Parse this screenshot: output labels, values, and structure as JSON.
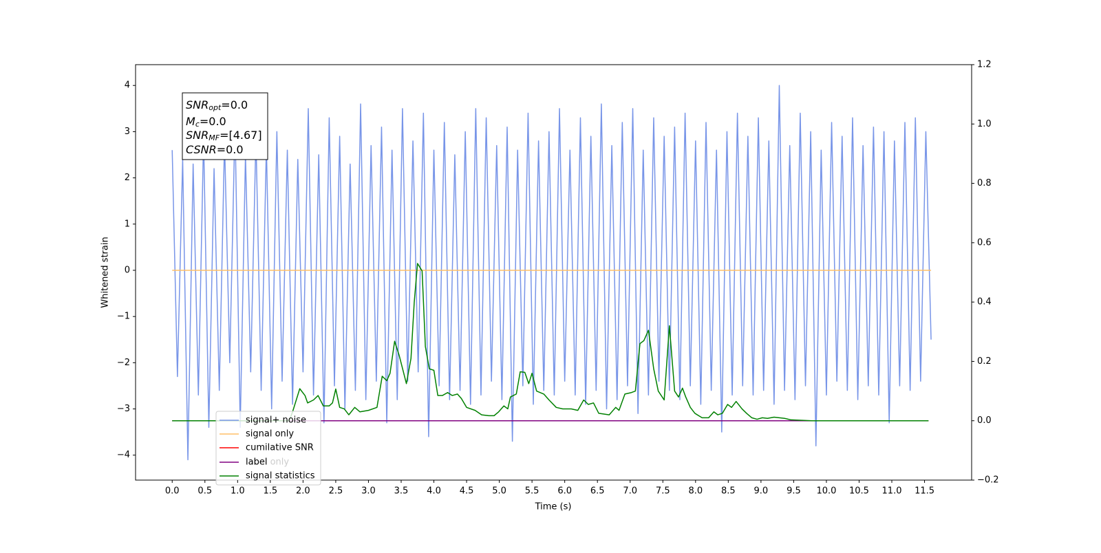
{
  "chart_data": {
    "type": "line",
    "xlabel": "Time (s)",
    "ylabel": "Whitened strain",
    "xlim": [
      -0.56,
      12.22
    ],
    "ylim": [
      -4.54,
      4.45
    ],
    "y2lim": [
      -0.2,
      1.2
    ],
    "xticks": [
      {
        "value": 0,
        "label": "0.0"
      },
      0.5,
      {
        "value": 1,
        "label": "1.0"
      },
      1.5,
      {
        "value": 2,
        "label": "2.0"
      },
      2.5,
      {
        "value": 3,
        "label": "3.0"
      },
      3.5,
      {
        "value": 4,
        "label": "4.0"
      },
      4.5,
      {
        "value": 5,
        "label": "5.0"
      },
      5.5,
      {
        "value": 6,
        "label": "6.0"
      },
      6.5,
      {
        "value": 7,
        "label": "7.0"
      },
      7.5,
      {
        "value": 8,
        "label": "8.0"
      },
      8.5,
      {
        "value": 9,
        "label": "9.0"
      },
      9.5,
      {
        "value": 10,
        "label": "10.0"
      },
      10.5,
      {
        "value": 11,
        "label": "11.0"
      },
      11.5
    ],
    "yticks": [
      {
        "value": -4,
        "label": "−4"
      },
      {
        "value": -3,
        "label": "−3"
      },
      {
        "value": -2,
        "label": "−2"
      },
      {
        "value": -1,
        "label": "−1"
      },
      0,
      1,
      2,
      3,
      4
    ],
    "y2ticks": [
      {
        "value": -0.2,
        "label": "−0.2"
      },
      {
        "value": 0,
        "label": "0.0"
      },
      0.2,
      0.4,
      0.6,
      0.8,
      {
        "value": 1,
        "label": "1.0"
      },
      1.2
    ],
    "legend": "lower left",
    "legend_overlay_text": "label only",
    "annotation": [
      {
        "symbol": "SNR",
        "sub": "opt",
        "text": "=0.0"
      },
      {
        "symbol": "M",
        "sub": "c",
        "text": "=0.0"
      },
      {
        "symbol": "SNR",
        "sub": "MF",
        "text": "=[4.67]"
      },
      {
        "symbol": "CSNR",
        "sub": null,
        "text": "=0.0"
      }
    ],
    "series": [
      {
        "name": "signal+ noise",
        "color": "#7895e8",
        "axis": "y",
        "x": [
          0.0,
          0.08,
          0.16,
          0.24,
          0.32,
          0.4,
          0.48,
          0.56,
          0.64,
          0.72,
          0.8,
          0.88,
          0.96,
          1.04,
          1.12,
          1.2,
          1.28,
          1.36,
          1.44,
          1.52,
          1.6,
          1.68,
          1.76,
          1.84,
          1.92,
          2.0,
          2.08,
          2.16,
          2.24,
          2.32,
          2.4,
          2.48,
          2.56,
          2.64,
          2.72,
          2.8,
          2.88,
          2.96,
          3.04,
          3.12,
          3.2,
          3.28,
          3.36,
          3.44,
          3.52,
          3.6,
          3.68,
          3.76,
          3.84,
          3.92,
          4.0,
          4.08,
          4.16,
          4.24,
          4.32,
          4.4,
          4.48,
          4.56,
          4.64,
          4.72,
          4.8,
          4.88,
          4.96,
          5.04,
          5.12,
          5.2,
          5.28,
          5.36,
          5.44,
          5.52,
          5.6,
          5.68,
          5.76,
          5.84,
          5.92,
          6.0,
          6.08,
          6.16,
          6.24,
          6.32,
          6.4,
          6.48,
          6.56,
          6.64,
          6.72,
          6.8,
          6.88,
          6.96,
          7.04,
          7.12,
          7.2,
          7.28,
          7.36,
          7.44,
          7.52,
          7.6,
          7.68,
          7.76,
          7.84,
          7.92,
          8.0,
          8.08,
          8.16,
          8.24,
          8.32,
          8.4,
          8.48,
          8.56,
          8.64,
          8.72,
          8.8,
          8.88,
          8.96,
          9.04,
          9.12,
          9.2,
          9.28,
          9.36,
          9.44,
          9.52,
          9.6,
          9.68,
          9.76,
          9.84,
          9.92,
          10.0,
          10.08,
          10.16,
          10.24,
          10.32,
          10.4,
          10.48,
          10.56,
          10.64,
          10.72,
          10.8,
          10.88,
          10.96,
          11.04,
          11.12,
          11.2,
          11.28,
          11.36,
          11.44,
          11.52,
          11.6
        ],
        "values": [
          2.6,
          -2.3,
          2.4,
          -4.1,
          2.3,
          -2.7,
          2.9,
          -3.4,
          2.2,
          -2.6,
          2.8,
          -2.0,
          3.2,
          -3.4,
          2.5,
          -2.2,
          2.9,
          -2.6,
          2.7,
          -3.0,
          3.0,
          -2.4,
          2.6,
          -2.9,
          2.4,
          -2.2,
          3.5,
          -2.7,
          2.5,
          -3.3,
          3.3,
          -2.5,
          2.9,
          -3.0,
          2.3,
          -2.6,
          3.6,
          -2.8,
          2.7,
          -2.4,
          3.1,
          -3.3,
          2.6,
          -2.8,
          3.5,
          -2.4,
          2.8,
          -2.2,
          3.4,
          -3.6,
          2.6,
          -2.5,
          3.2,
          -2.8,
          2.5,
          -2.6,
          3.0,
          -2.9,
          3.5,
          -2.7,
          3.3,
          -2.4,
          2.7,
          -2.8,
          3.1,
          -3.7,
          2.6,
          -2.5,
          3.4,
          -2.9,
          2.8,
          -2.6,
          3.0,
          -2.7,
          3.5,
          -2.4,
          2.6,
          -2.7,
          3.3,
          -2.9,
          2.9,
          -2.6,
          3.6,
          -3.0,
          2.7,
          -2.8,
          3.2,
          -2.5,
          3.5,
          -3.1,
          2.6,
          -2.7,
          3.3,
          -2.4,
          2.9,
          -2.6,
          3.1,
          -2.8,
          3.4,
          -2.5,
          2.8,
          -2.9,
          3.2,
          -2.6,
          2.6,
          -3.5,
          3.0,
          -2.7,
          3.4,
          -2.5,
          2.9,
          -2.7,
          3.3,
          -2.6,
          2.8,
          -2.9,
          4.0,
          -2.6,
          2.7,
          -2.8,
          3.4,
          -2.5,
          3.0,
          -3.8,
          2.6,
          -2.7,
          3.2,
          -2.4,
          2.9,
          -2.6,
          3.3,
          -2.8,
          2.7,
          -2.5,
          3.1,
          -2.7,
          3.0,
          -3.3,
          2.8,
          -2.5,
          3.2,
          -2.6,
          3.3,
          -2.4,
          3.0,
          -1.5
        ]
      },
      {
        "name": "signal only",
        "color": "#ffbf66",
        "axis": "y",
        "x": [
          0,
          11.6
        ],
        "values": [
          0,
          0
        ]
      },
      {
        "name": "cumilative SNR",
        "color": "#ff0000",
        "axis": "y2",
        "x": [
          0,
          11.56
        ],
        "values": [
          0,
          0
        ]
      },
      {
        "name": "label",
        "color": "#800080",
        "axis": "y2",
        "x": [
          0,
          11.56
        ],
        "values": [
          0,
          0
        ]
      },
      {
        "name": "signal statistics",
        "color": "#008000",
        "axis": "y2",
        "x": [
          0,
          1.79,
          1.84,
          1.95,
          2.03,
          2.07,
          2.16,
          2.23,
          2.31,
          2.4,
          2.45,
          2.5,
          2.56,
          2.63,
          2.7,
          2.79,
          2.87,
          3.0,
          3.13,
          3.21,
          3.28,
          3.33,
          3.4,
          3.47,
          3.58,
          3.65,
          3.7,
          3.75,
          3.82,
          3.87,
          3.93,
          4.0,
          4.06,
          4.13,
          4.21,
          4.28,
          4.36,
          4.42,
          4.5,
          4.63,
          4.73,
          4.84,
          4.92,
          4.99,
          5.07,
          5.13,
          5.17,
          5.26,
          5.32,
          5.39,
          5.45,
          5.5,
          5.57,
          5.68,
          5.76,
          5.87,
          5.97,
          6.1,
          6.2,
          6.29,
          6.36,
          6.44,
          6.52,
          6.68,
          6.78,
          6.83,
          6.92,
          7.02,
          7.08,
          7.15,
          7.21,
          7.28,
          7.36,
          7.43,
          7.52,
          7.6,
          7.68,
          7.74,
          7.8,
          7.85,
          7.92,
          7.99,
          8.1,
          8.2,
          8.28,
          8.34,
          8.41,
          8.49,
          8.55,
          8.62,
          8.71,
          8.78,
          8.86,
          8.94,
          9.02,
          9.1,
          9.2,
          9.36,
          9.46,
          9.78,
          11.56
        ],
        "values": [
          0,
          0,
          0.03,
          0.108,
          0.085,
          0.06,
          0.07,
          0.085,
          0.05,
          0.05,
          0.06,
          0.107,
          0.045,
          0.04,
          0.02,
          0.045,
          0.03,
          0.035,
          0.045,
          0.15,
          0.135,
          0.16,
          0.268,
          0.22,
          0.125,
          0.21,
          0.4,
          0.53,
          0.505,
          0.25,
          0.175,
          0.17,
          0.085,
          0.085,
          0.095,
          0.085,
          0.09,
          0.075,
          0.045,
          0.035,
          0.02,
          0.017,
          0.017,
          0.03,
          0.05,
          0.04,
          0.08,
          0.09,
          0.165,
          0.163,
          0.125,
          0.16,
          0.1,
          0.09,
          0.07,
          0.045,
          0.04,
          0.04,
          0.035,
          0.07,
          0.055,
          0.06,
          0.025,
          0.02,
          0.045,
          0.035,
          0.09,
          0.095,
          0.1,
          0.26,
          0.27,
          0.305,
          0.175,
          0.1,
          0.07,
          0.32,
          0.1,
          0.08,
          0.11,
          0.08,
          0.045,
          0.025,
          0.01,
          0.01,
          0.03,
          0.02,
          0.025,
          0.055,
          0.045,
          0.065,
          0.04,
          0.025,
          0.01,
          0.005,
          0.01,
          0.008,
          0.012,
          0.008,
          0.003,
          0,
          0
        ]
      }
    ]
  }
}
